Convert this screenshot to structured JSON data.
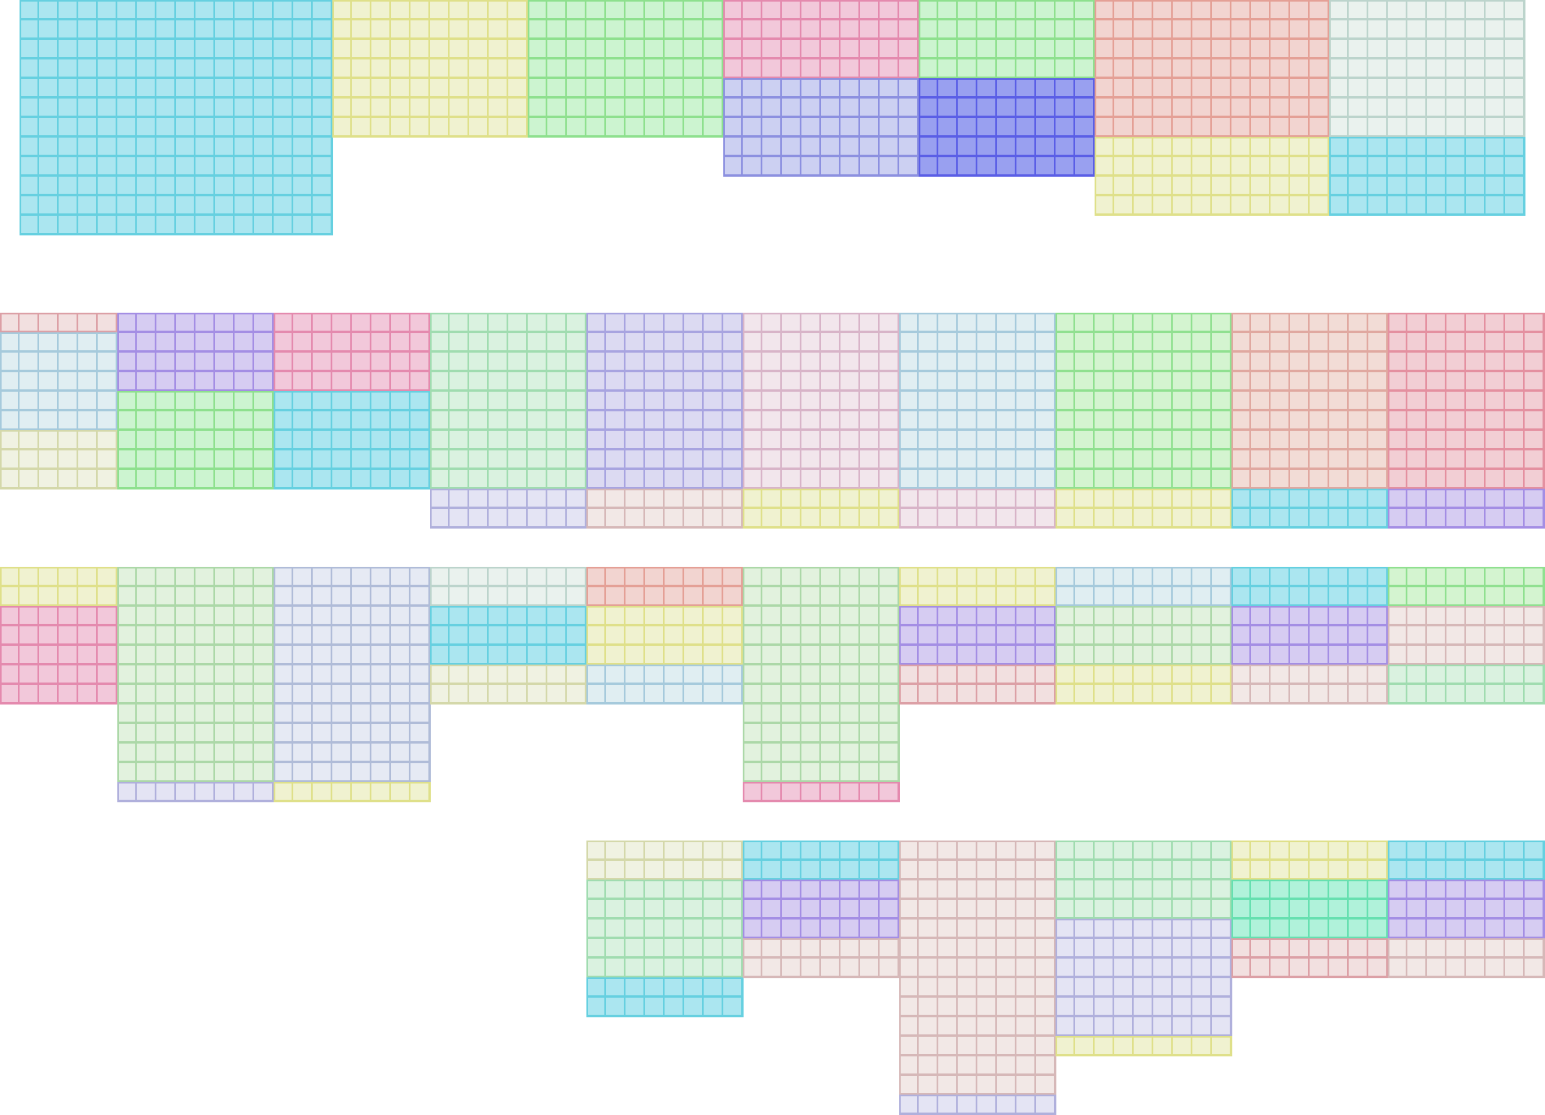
{
  "palette": {
    "cyan": {
      "fill": "#abe6f0",
      "line": "#66d0e0"
    },
    "yellow": {
      "fill": "#f0f2d0",
      "line": "#dfe08a"
    },
    "green": {
      "fill": "#ccf4d0",
      "line": "#8ee08e"
    },
    "pink": {
      "fill": "#f2c8da",
      "line": "#e48aae"
    },
    "periwinkle": {
      "fill": "#ccd0f2",
      "line": "#8c90e0"
    },
    "blue": {
      "fill": "#99a0f0",
      "line": "#5a5ee6"
    },
    "salmon": {
      "fill": "#f2d4d0",
      "line": "#e4a096"
    },
    "greymint": {
      "fill": "#eaf2ee",
      "line": "#bcd4cc"
    },
    "palerose": {
      "fill": "#f2e0e0",
      "line": "#dca0a6"
    },
    "lightblue": {
      "fill": "#e0eef2",
      "line": "#a6cadc"
    },
    "paleyellow": {
      "fill": "#f0f2e2",
      "line": "#d4d8aa"
    },
    "purple": {
      "fill": "#d6ccf2",
      "line": "#a48ee4"
    },
    "mint": {
      "fill": "#daf2e0",
      "line": "#a0dcb0"
    },
    "lavender": {
      "fill": "#dcdaf2",
      "line": "#a8a4e0"
    },
    "palepink": {
      "fill": "#f2e6ec",
      "line": "#d8b4c8"
    },
    "lightgreen": {
      "fill": "#d4f4d0",
      "line": "#90e090"
    },
    "peach": {
      "fill": "#f2dcd6",
      "line": "#e0a8a0"
    },
    "redpink": {
      "fill": "#f2ced4",
      "line": "#e490a0"
    },
    "palelavender": {
      "fill": "#e4e4f4",
      "line": "#b0b0dc"
    },
    "palesalmon": {
      "fill": "#f2e8e6",
      "line": "#d6b8b8"
    },
    "palegreen": {
      "fill": "#e2f2de",
      "line": "#acd8a8"
    },
    "paleblue": {
      "fill": "#e6eaf4",
      "line": "#b0bcd8"
    },
    "teal": {
      "fill": "#b0f2da",
      "line": "#66e0b0"
    }
  }
}
